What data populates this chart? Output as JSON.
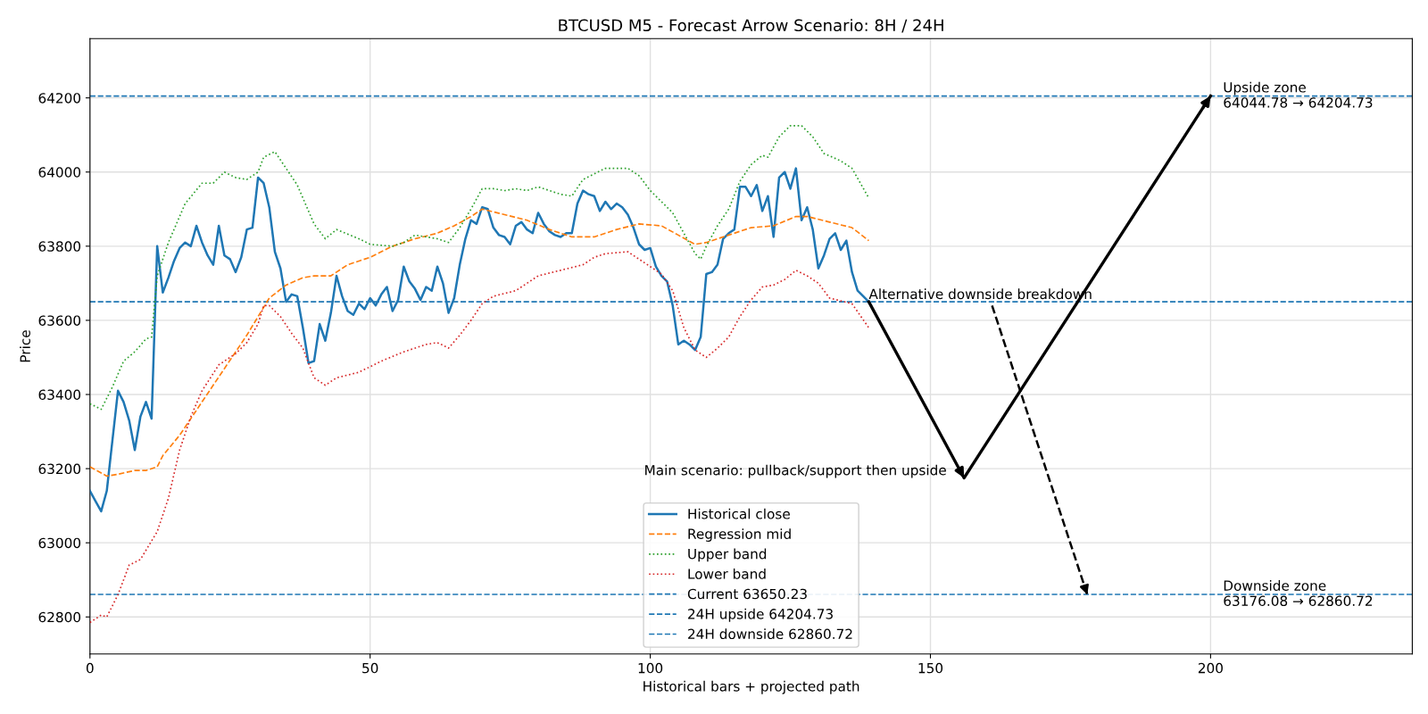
{
  "chart_data": {
    "type": "line",
    "title": "BTCUSD M5 - Forecast Arrow Scenario: 8H / 24H",
    "xlabel": "Historical bars + projected path",
    "ylabel": "Price",
    "xlim": [
      0,
      236
    ],
    "xticks": [
      0,
      50,
      100,
      150,
      200
    ],
    "ylim": [
      62700,
      64360
    ],
    "yticks": [
      62800,
      63000,
      63200,
      63400,
      63600,
      63800,
      64000,
      64200
    ],
    "grid": true,
    "legend": "bottom",
    "series": [
      {
        "name": "Historical close",
        "color": "#1f77b4",
        "line_style": "solid",
        "x": [
          0,
          1,
          2,
          3,
          4,
          5,
          6,
          7,
          8,
          9,
          10,
          11,
          12,
          13,
          14,
          15,
          16,
          17,
          18,
          19,
          20,
          21,
          22,
          23,
          24,
          25,
          26,
          27,
          28,
          29,
          30,
          31,
          32,
          33,
          34,
          35,
          36,
          37,
          38,
          39,
          40,
          41,
          42,
          43,
          44,
          45,
          46,
          47,
          48,
          49,
          50,
          51,
          52,
          53,
          54,
          55,
          56,
          57,
          58,
          59,
          60,
          61,
          62,
          63,
          64,
          65,
          66,
          67,
          68,
          69,
          70,
          71,
          72,
          73,
          74,
          75,
          76,
          77,
          78,
          79,
          80,
          81,
          82,
          83,
          84,
          85,
          86,
          87,
          88,
          89,
          90,
          91,
          92,
          93,
          94,
          95,
          96,
          97,
          98,
          99,
          100,
          101,
          102,
          103,
          104,
          105,
          106,
          107,
          108,
          109,
          110,
          111,
          112,
          113,
          114,
          115,
          116,
          117,
          118,
          119,
          120,
          121,
          122,
          123,
          124,
          125,
          126,
          127,
          128,
          129,
          130,
          131,
          132,
          133,
          134,
          135,
          136,
          137,
          138,
          139
        ],
        "values": [
          63140,
          63112,
          63085,
          63140,
          63275,
          63410,
          63380,
          63330,
          63250,
          63340,
          63380,
          63335,
          63800,
          63675,
          63715,
          63760,
          63795,
          63810,
          63800,
          63855,
          63810,
          63775,
          63750,
          63855,
          63775,
          63765,
          63730,
          63770,
          63845,
          63850,
          63985,
          63970,
          63905,
          63785,
          63740,
          63650,
          63670,
          63665,
          63580,
          63485,
          63490,
          63590,
          63545,
          63620,
          63720,
          63665,
          63625,
          63615,
          63645,
          63630,
          63660,
          63640,
          63670,
          63690,
          63625,
          63655,
          63745,
          63705,
          63685,
          63655,
          63690,
          63680,
          63745,
          63700,
          63620,
          63660,
          63750,
          63820,
          63870,
          63860,
          63905,
          63900,
          63850,
          63830,
          63825,
          63805,
          63855,
          63865,
          63845,
          63835,
          63890,
          63860,
          63840,
          63830,
          63825,
          63835,
          63835,
          63915,
          63950,
          63940,
          63935,
          63895,
          63920,
          63900,
          63915,
          63905,
          63885,
          63850,
          63805,
          63790,
          63795,
          63745,
          63720,
          63705,
          63640,
          63535,
          63545,
          63535,
          63520,
          63555,
          63725,
          63730,
          63750,
          63820,
          63835,
          63845,
          63960,
          63960,
          63935,
          63965,
          63895,
          63935,
          63825,
          63985,
          64000,
          63955,
          64010,
          63870,
          63905,
          63845,
          63740,
          63775,
          63820,
          63835,
          63790,
          63815,
          63730,
          63680,
          63665,
          63650
        ]
      },
      {
        "name": "Regression mid",
        "color": "#ff7f0e",
        "line_style": "dashed",
        "x": [
          0,
          3,
          5,
          8,
          10,
          12,
          13,
          16,
          20,
          24,
          28,
          32,
          35,
          38,
          40,
          43,
          46,
          50,
          54,
          58,
          62,
          65,
          68,
          70,
          74,
          78,
          82,
          86,
          90,
          94,
          98,
          102,
          105,
          108,
          110,
          114,
          118,
          122,
          126,
          128,
          132,
          136,
          139
        ],
        "values": [
          63205,
          63180,
          63185,
          63195,
          63195,
          63205,
          63235,
          63290,
          63380,
          63470,
          63560,
          63660,
          63695,
          63715,
          63720,
          63720,
          63750,
          63770,
          63800,
          63820,
          63835,
          63855,
          63880,
          63900,
          63885,
          63870,
          63845,
          63825,
          63825,
          63845,
          63860,
          63855,
          63830,
          63805,
          63810,
          63830,
          63850,
          63855,
          63880,
          63880,
          63865,
          63850,
          63815
        ]
      },
      {
        "name": "Upper band",
        "color": "#2ca02c",
        "line_style": "dotted",
        "x": [
          0,
          2,
          4,
          6,
          8,
          10,
          11,
          12,
          14,
          17,
          20,
          22,
          24,
          26,
          28,
          30,
          31,
          33,
          35,
          37,
          40,
          42,
          44,
          48,
          50,
          54,
          56,
          58,
          62,
          64,
          66,
          68,
          70,
          72,
          74,
          76,
          78,
          80,
          84,
          86,
          88,
          90,
          92,
          96,
          98,
          100,
          104,
          106,
          108,
          109,
          110,
          112,
          114,
          116,
          118,
          120,
          121,
          123,
          125,
          127,
          129,
          131,
          134,
          136,
          139
        ],
        "values": [
          63375,
          63360,
          63420,
          63490,
          63515,
          63550,
          63555,
          63720,
          63810,
          63915,
          63970,
          63970,
          64000,
          63985,
          63980,
          64000,
          64040,
          64055,
          64010,
          63965,
          63860,
          63820,
          63845,
          63820,
          63805,
          63800,
          63810,
          63830,
          63820,
          63810,
          63850,
          63900,
          63955,
          63955,
          63950,
          63955,
          63950,
          63960,
          63940,
          63935,
          63980,
          63995,
          64010,
          64010,
          63990,
          63950,
          63890,
          63835,
          63780,
          63765,
          63800,
          63855,
          63900,
          63975,
          64020,
          64045,
          64040,
          64095,
          64125,
          64125,
          64095,
          64050,
          64030,
          64010,
          63930
        ]
      },
      {
        "name": "Lower band",
        "color": "#d62728",
        "line_style": "dotted",
        "x": [
          0,
          2,
          3,
          5,
          7,
          9,
          12,
          14,
          16,
          18,
          20,
          23,
          26,
          28,
          30,
          31,
          32,
          34,
          36,
          38,
          40,
          42,
          44,
          48,
          52,
          56,
          60,
          62,
          64,
          66,
          68,
          70,
          72,
          76,
          80,
          84,
          88,
          90,
          92,
          96,
          98,
          100,
          102,
          104,
          106,
          108,
          110,
          112,
          114,
          116,
          118,
          120,
          122,
          124,
          126,
          128,
          130,
          132,
          136,
          139
        ],
        "values": [
          62785,
          62805,
          62800,
          62860,
          62940,
          62955,
          63030,
          63120,
          63250,
          63340,
          63410,
          63480,
          63510,
          63540,
          63590,
          63640,
          63640,
          63610,
          63565,
          63525,
          63445,
          63425,
          63445,
          63460,
          63490,
          63515,
          63535,
          63540,
          63525,
          63560,
          63600,
          63645,
          63665,
          63680,
          63720,
          63735,
          63750,
          63770,
          63780,
          63785,
          63765,
          63745,
          63725,
          63680,
          63580,
          63520,
          63500,
          63525,
          63555,
          63610,
          63655,
          63690,
          63695,
          63710,
          63735,
          63720,
          63700,
          63660,
          63645,
          63580
        ]
      },
      {
        "type": "line",
        "color": "#000000",
        "line_style": "solid",
        "x": [
          139,
          156,
          200
        ],
        "values": [
          63650,
          63175,
          64205
        ]
      },
      {
        "type": "line",
        "color": "#000000",
        "line_style": "dashed",
        "x": [
          161,
          178
        ],
        "values": [
          63640,
          62860
        ]
      }
    ],
    "ref_lines": [
      {
        "axis": "y",
        "value": 63650.23,
        "label": "Current 63650.23",
        "color": "#1f77b4",
        "line_style": "dashed"
      },
      {
        "axis": "y",
        "value": 64204.73,
        "label": "24H upside 64204.73",
        "color": "#1f77b4",
        "line_style": "dashed"
      },
      {
        "axis": "y",
        "value": 62860.72,
        "label": "24H downside 62860.72",
        "color": "#1f77b4",
        "line_style": "dashed"
      }
    ],
    "annotations": [
      "Alternative downside breakdown",
      "Main scenario: pullback/support then upside",
      "Upside zone\n64044.78 → 64204.73",
      "Downside zone\n63176.08 → 62860.72"
    ]
  }
}
